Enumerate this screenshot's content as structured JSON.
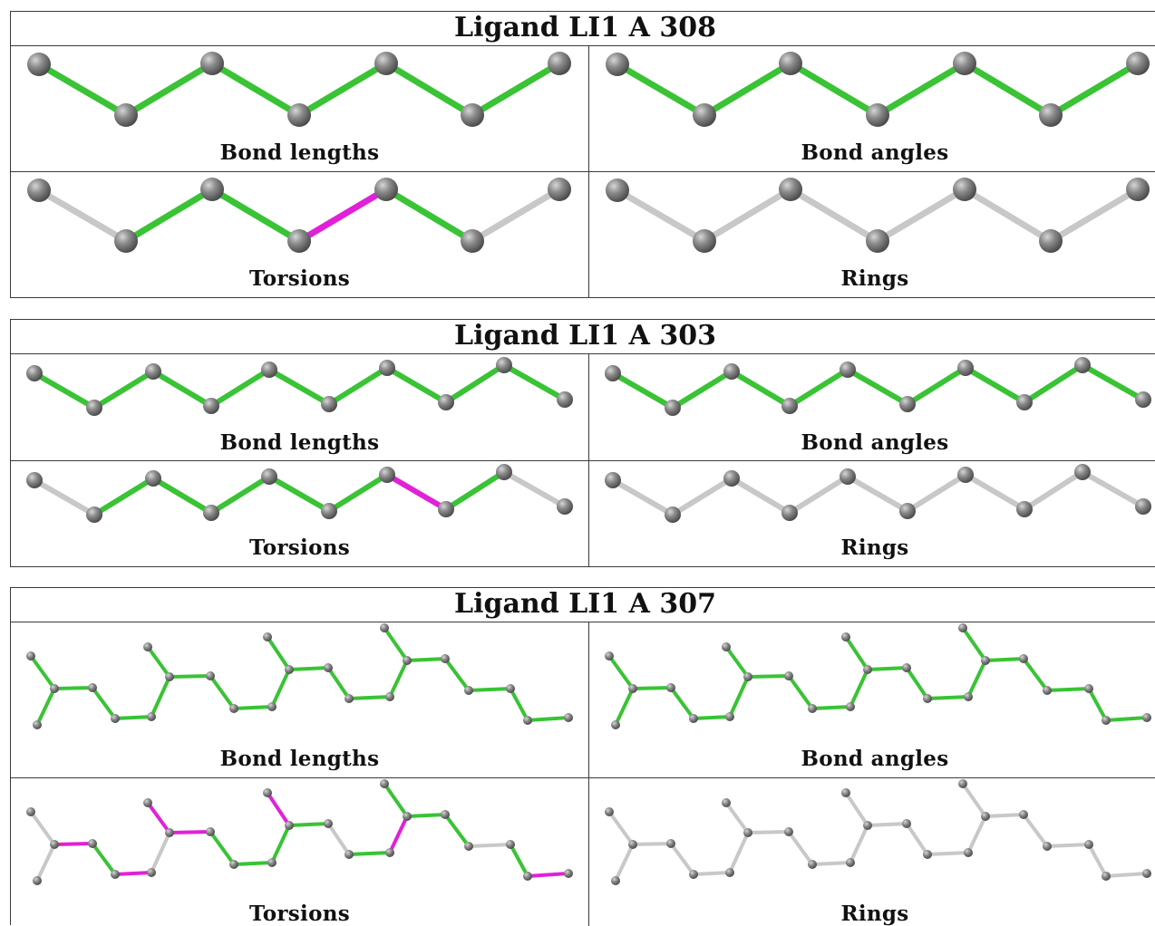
{
  "colors": {
    "ok": "#39c335",
    "outlier": "#e021d8",
    "na": "#c8c8c8",
    "atom": "#777777",
    "border": "#3a3a3a"
  },
  "ligands": [
    {
      "title": "Ligand LI1 A 308",
      "panels": [
        {
          "label": "Bond lengths",
          "bond_status": [
            "ok",
            "ok",
            "ok",
            "ok",
            "ok",
            "ok"
          ]
        },
        {
          "label": "Bond angles",
          "bond_status": [
            "ok",
            "ok",
            "ok",
            "ok",
            "ok",
            "ok"
          ]
        },
        {
          "label": "Torsions",
          "bond_status": [
            "na",
            "ok",
            "ok",
            "outlier",
            "ok",
            "na"
          ]
        },
        {
          "label": "Rings",
          "bond_status": [
            "na",
            "na",
            "na",
            "na",
            "na",
            "na"
          ]
        }
      ]
    },
    {
      "title": "Ligand LI1 A 303",
      "panels": [
        {
          "label": "Bond lengths",
          "bond_status": [
            "ok",
            "ok",
            "ok",
            "ok",
            "ok",
            "ok",
            "ok",
            "ok",
            "ok",
            "ok"
          ]
        },
        {
          "label": "Bond angles",
          "bond_status": [
            "ok",
            "ok",
            "ok",
            "ok",
            "ok",
            "ok",
            "ok",
            "ok",
            "ok",
            "ok"
          ]
        },
        {
          "label": "Torsions",
          "bond_status": [
            "na",
            "ok",
            "ok",
            "ok",
            "ok",
            "ok",
            "outlier",
            "ok",
            "na",
            "na"
          ]
        },
        {
          "label": "Rings",
          "bond_status": [
            "na",
            "na",
            "na",
            "na",
            "na",
            "na",
            "na",
            "na",
            "na",
            "na"
          ]
        }
      ]
    },
    {
      "title": "Ligand LI1 A 307",
      "panels": [
        {
          "label": "Bond lengths",
          "bond_status": [
            "ok",
            "ok",
            "ok",
            "ok",
            "ok",
            "ok",
            "ok",
            "ok",
            "ok",
            "ok",
            "ok",
            "ok",
            "ok",
            "ok",
            "ok",
            "ok",
            "ok",
            "ok",
            "ok",
            "ok",
            "ok",
            "ok",
            "ok",
            "ok",
            "ok",
            "ok"
          ]
        },
        {
          "label": "Bond angles",
          "bond_status": [
            "ok",
            "ok",
            "ok",
            "ok",
            "ok",
            "ok",
            "ok",
            "ok",
            "ok",
            "ok",
            "ok",
            "ok",
            "ok",
            "ok",
            "ok",
            "ok",
            "ok",
            "ok",
            "ok",
            "ok",
            "ok",
            "ok",
            "ok",
            "ok",
            "ok",
            "ok"
          ]
        },
        {
          "label": "Torsions",
          "bond_status": [
            "na",
            "na",
            "outlier",
            "ok",
            "outlier",
            "na",
            "outlier",
            "outlier",
            "ok",
            "ok",
            "ok",
            "outlier",
            "ok",
            "na",
            "ok",
            "outlier",
            "ok",
            "ok",
            "ok",
            "na",
            "ok",
            "outlier",
            "ok",
            "ok",
            "outlier",
            "na"
          ]
        },
        {
          "label": "Rings",
          "bond_status": [
            "na",
            "na",
            "na",
            "na",
            "na",
            "na",
            "na",
            "na",
            "na",
            "na",
            "na",
            "na",
            "na",
            "na",
            "na",
            "na",
            "na",
            "na",
            "na",
            "na",
            "na",
            "na",
            "na",
            "na",
            "na",
            "na"
          ]
        }
      ]
    }
  ]
}
